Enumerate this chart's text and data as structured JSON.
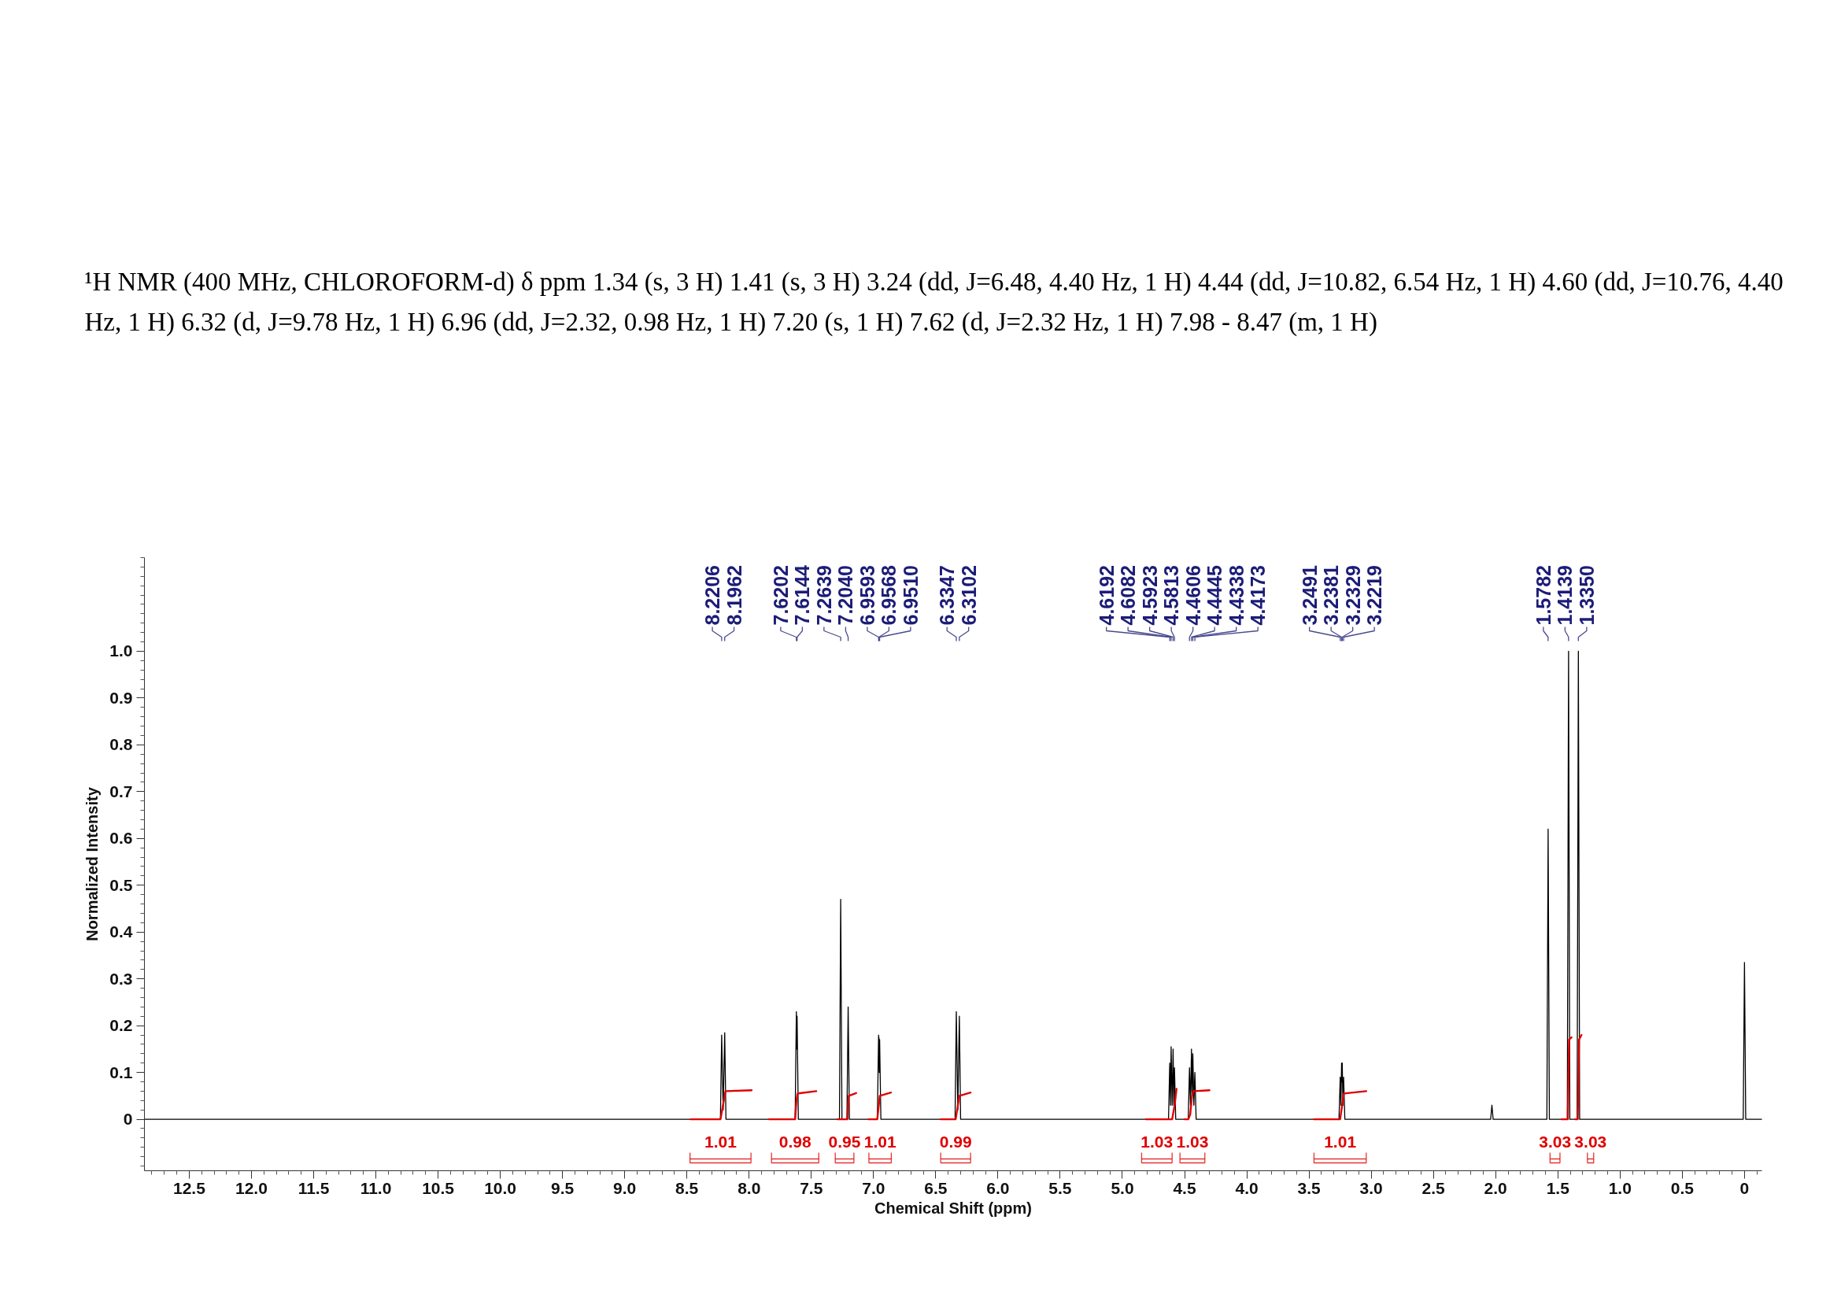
{
  "chart_data": {
    "type": "line",
    "title": "¹H NMR (400 MHz, CHLOROFORM-d) δ ppm 1.34 (s, 3 H) 1.41 (s, 3 H) 3.24 (dd, J=6.48, 4.40 Hz, 1 H) 4.44 (dd, J=10.82, 6.54 Hz, 1 H) 4.60 (dd, J=10.76, 4.40 Hz, 1 H) 6.32 (d, J=9.78 Hz, 1 H) 6.96 (dd, J=2.32, 0.98 Hz, 1 H) 7.20 (s, 1 H) 7.62 (d, J=2.32 Hz, 1 H) 7.98 - 8.47 (m, 1 H)",
    "xlabel": "Chemical Shift (ppm)",
    "ylabel": "Normalized Intensity",
    "xlim": [
      12.86,
      -0.14
    ],
    "ylim": [
      -0.11,
      1.2
    ],
    "xticks": [
      12.5,
      {
        "value": 12,
        "label": "12.0"
      },
      11.5,
      {
        "value": 11,
        "label": "11.0"
      },
      10.5,
      {
        "value": 10,
        "label": "10.0"
      },
      9.5,
      {
        "value": 9,
        "label": "9.0"
      },
      8.5,
      {
        "value": 8,
        "label": "8.0"
      },
      7.5,
      {
        "value": 7,
        "label": "7.0"
      },
      6.5,
      {
        "value": 6,
        "label": "6.0"
      },
      5.5,
      {
        "value": 5,
        "label": "5.0"
      },
      4.5,
      {
        "value": 4,
        "label": "4.0"
      },
      3.5,
      {
        "value": 3,
        "label": "3.0"
      },
      2.5,
      {
        "value": 2,
        "label": "2.0"
      },
      1.5,
      {
        "value": 1,
        "label": "1.0"
      },
      0.5,
      0
    ],
    "yticks": [
      0,
      0.1,
      0.2,
      0.3,
      0.4,
      0.5,
      0.6,
      0.7,
      0.8,
      0.9,
      {
        "value": 1,
        "label": "1.0"
      }
    ],
    "grid": false,
    "line_style": "solid",
    "series": [
      {
        "color": "#000000",
        "x": [
          12.86,
          8.2306,
          8.2206,
          8.2084,
          8.1962,
          8.1862,
          7.6302,
          7.6202,
          7.6173,
          7.6144,
          7.6044,
          7.2739,
          7.2639,
          7.2539,
          7.214,
          7.204,
          7.194,
          6.9693,
          6.9593,
          6.958,
          6.9568,
          6.9539,
          6.951,
          6.941,
          6.3447,
          6.3347,
          6.3225,
          6.3102,
          6.3002,
          4.6292,
          4.6192,
          4.6137,
          4.6082,
          4.6003,
          4.5923,
          4.5868,
          4.5813,
          4.5713,
          4.4706,
          4.4606,
          4.4526,
          4.4445,
          4.4392,
          4.4338,
          4.4256,
          4.4173,
          4.4073,
          3.2591,
          3.2491,
          3.2436,
          3.2381,
          3.2355,
          3.2329,
          3.2274,
          3.2219,
          3.2119,
          2.04,
          2.03,
          2.02,
          1.5882,
          1.5782,
          1.5682,
          1.4239,
          1.4139,
          1.4039,
          1.345,
          1.335,
          1.325,
          0.01,
          0,
          -0.01,
          -0.14
        ],
        "values": [
          0,
          0,
          0.18,
          0.02,
          0.185,
          0,
          0,
          0.23,
          0.15,
          0.22,
          0,
          0,
          0.47,
          0,
          0,
          0.24,
          0,
          0,
          0.18,
          0.12,
          0.175,
          0.1,
          0.17,
          0,
          0,
          0.23,
          0.02,
          0.22,
          0,
          0,
          0.12,
          0.03,
          0.155,
          0.03,
          0.15,
          0.03,
          0.11,
          0,
          0,
          0.11,
          0.03,
          0.15,
          0.05,
          0.14,
          0.03,
          0.1,
          0,
          0,
          0.09,
          0.03,
          0.12,
          0.08,
          0.12,
          0.03,
          0.09,
          0,
          0,
          0.03,
          0,
          0,
          0.62,
          0,
          0,
          1.0,
          0,
          0,
          1.0,
          0,
          0,
          0.335,
          0,
          0
        ]
      },
      {
        "color": "#e00000",
        "x": [
          8.47,
          8.23,
          8.21,
          8.19,
          7.98,
          7.9,
          7.84,
          7.63,
          7.62,
          7.61,
          7.46,
          7.4,
          7.29,
          7.21,
          7.2,
          7.14,
          7.1,
          7.04,
          6.97,
          6.95,
          6.86,
          6.6,
          6.46,
          6.34,
          6.31,
          6.22,
          5.0,
          4.81,
          4.69,
          4.6,
          4.58,
          4.565,
          4.53,
          4.5,
          4.47,
          4.455,
          4.44,
          4.43,
          4.3,
          4.0,
          3.46,
          3.25,
          3.22,
          3.04,
          2.0,
          1.47,
          1.42,
          1.41,
          1.39,
          1.37,
          1.36,
          1.34,
          1.33,
          1.31
        ],
        "values": [
          0,
          0,
          0.03,
          0.06,
          0.062,
          null,
          0,
          0,
          0.04,
          0.055,
          0.06,
          null,
          0,
          0,
          0.05,
          0.056,
          null,
          0,
          0,
          0.05,
          0.057,
          null,
          0,
          0,
          0.05,
          0.057,
          null,
          0,
          0,
          0,
          0.03,
          0.065,
          null,
          0,
          0,
          0.01,
          0.05,
          0.06,
          0.062,
          null,
          0,
          0,
          0.055,
          0.06,
          null,
          0,
          0,
          0.17,
          0.175,
          null,
          0,
          0,
          0.17,
          0.18
        ]
      }
    ],
    "annotations": [
      {
        "text": "8.2206",
        "x": 8.2206
      },
      {
        "text": "8.1962",
        "x": 8.1962
      },
      {
        "text": "7.6202",
        "x": 7.6202
      },
      {
        "text": "7.6144",
        "x": 7.6144
      },
      {
        "text": "7.2639",
        "x": 7.2639
      },
      {
        "text": "7.2040",
        "x": 7.204
      },
      {
        "text": "6.9593",
        "x": 6.9593
      },
      {
        "text": "6.9568",
        "x": 6.9568
      },
      {
        "text": "6.9510",
        "x": 6.951
      },
      {
        "text": "6.3347",
        "x": 6.3347
      },
      {
        "text": "6.3102",
        "x": 6.3102
      },
      {
        "text": "4.6192",
        "x": 4.6192
      },
      {
        "text": "4.6082",
        "x": 4.6082
      },
      {
        "text": "4.5923",
        "x": 4.5923
      },
      {
        "text": "4.5813",
        "x": 4.5813
      },
      {
        "text": "4.4606",
        "x": 4.4606
      },
      {
        "text": "4.4445",
        "x": 4.4445
      },
      {
        "text": "4.4338",
        "x": 4.4338
      },
      {
        "text": "4.4173",
        "x": 4.4173
      },
      {
        "text": "3.2491",
        "x": 3.2491
      },
      {
        "text": "3.2381",
        "x": 3.2381
      },
      {
        "text": "3.2329",
        "x": 3.2329
      },
      {
        "text": "3.2219",
        "x": 3.2219
      },
      {
        "text": "1.5782",
        "x": 1.5782
      },
      {
        "text": "1.4139",
        "x": 1.4139
      },
      {
        "text": "1.3350",
        "x": 1.335
      },
      {
        "text": "1.01",
        "x": 8.23,
        "y": 0
      },
      {
        "text": "0.98",
        "x": 7.63,
        "y": 0
      },
      {
        "text": "0.95",
        "x": 7.21,
        "y": 0
      },
      {
        "text": "1.01",
        "x": 6.97,
        "y": 0
      },
      {
        "text": "0.99",
        "x": 6.34,
        "y": 0
      },
      {
        "text": "1.03",
        "x": 4.69,
        "y": 0
      },
      {
        "text": "1.03",
        "x": 4.47,
        "y": 0
      },
      {
        "text": "1.01",
        "x": 3.25,
        "y": 0
      },
      {
        "text": "3.03",
        "x": 1.42,
        "y": 0
      },
      {
        "text": "3.03",
        "x": 1.34,
        "y": 0
      }
    ]
  }
}
